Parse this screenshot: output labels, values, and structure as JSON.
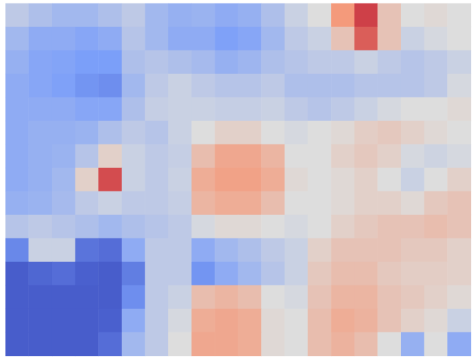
{
  "chart_data": {
    "type": "heatmap",
    "tick_labels": false,
    "color_range": [
      0,
      1
    ],
    "cells": [
      [
        0.42,
        0.38,
        0.35,
        0.35,
        0.38,
        0.42,
        0.35,
        0.32,
        0.33,
        0.3,
        0.32,
        0.38,
        0.45,
        0.5,
        0.75,
        0.9,
        0.6,
        0.5,
        0.52,
        0.5
      ],
      [
        0.35,
        0.3,
        0.3,
        0.28,
        0.3,
        0.4,
        0.35,
        0.3,
        0.3,
        0.26,
        0.28,
        0.35,
        0.42,
        0.45,
        0.6,
        0.85,
        0.6,
        0.45,
        0.48,
        0.5
      ],
      [
        0.32,
        0.28,
        0.27,
        0.25,
        0.25,
        0.38,
        0.4,
        0.38,
        0.36,
        0.32,
        0.34,
        0.38,
        0.4,
        0.42,
        0.42,
        0.45,
        0.42,
        0.4,
        0.42,
        0.45
      ],
      [
        0.3,
        0.28,
        0.26,
        0.22,
        0.2,
        0.35,
        0.42,
        0.45,
        0.42,
        0.4,
        0.4,
        0.42,
        0.38,
        0.38,
        0.38,
        0.4,
        0.4,
        0.4,
        0.42,
        0.48
      ],
      [
        0.3,
        0.3,
        0.3,
        0.28,
        0.28,
        0.38,
        0.44,
        0.45,
        0.45,
        0.44,
        0.44,
        0.45,
        0.42,
        0.4,
        0.42,
        0.45,
        0.48,
        0.5,
        0.5,
        0.52
      ],
      [
        0.3,
        0.32,
        0.32,
        0.33,
        0.38,
        0.42,
        0.4,
        0.45,
        0.5,
        0.55,
        0.55,
        0.5,
        0.48,
        0.5,
        0.52,
        0.56,
        0.58,
        0.55,
        0.52,
        0.5
      ],
      [
        0.3,
        0.32,
        0.33,
        0.4,
        0.55,
        0.45,
        0.42,
        0.44,
        0.62,
        0.7,
        0.7,
        0.65,
        0.5,
        0.5,
        0.55,
        0.58,
        0.55,
        0.48,
        0.46,
        0.48
      ],
      [
        0.3,
        0.32,
        0.35,
        0.55,
        0.88,
        0.45,
        0.42,
        0.45,
        0.68,
        0.72,
        0.72,
        0.68,
        0.52,
        0.5,
        0.52,
        0.55,
        0.5,
        0.45,
        0.5,
        0.55
      ],
      [
        0.32,
        0.33,
        0.36,
        0.42,
        0.45,
        0.42,
        0.42,
        0.44,
        0.65,
        0.68,
        0.68,
        0.62,
        0.5,
        0.5,
        0.52,
        0.55,
        0.55,
        0.52,
        0.58,
        0.6
      ],
      [
        0.4,
        0.42,
        0.4,
        0.38,
        0.35,
        0.38,
        0.4,
        0.42,
        0.48,
        0.52,
        0.52,
        0.5,
        0.48,
        0.5,
        0.55,
        0.58,
        0.6,
        0.6,
        0.62,
        0.6
      ],
      [
        0.18,
        0.45,
        0.45,
        0.12,
        0.1,
        0.3,
        0.42,
        0.42,
        0.3,
        0.35,
        0.38,
        0.42,
        0.45,
        0.55,
        0.6,
        0.6,
        0.6,
        0.58,
        0.58,
        0.55
      ],
      [
        0.05,
        0.08,
        0.1,
        0.06,
        0.05,
        0.15,
        0.42,
        0.42,
        0.22,
        0.3,
        0.35,
        0.4,
        0.45,
        0.58,
        0.62,
        0.62,
        0.58,
        0.56,
        0.56,
        0.55
      ],
      [
        0.05,
        0.05,
        0.05,
        0.05,
        0.05,
        0.2,
        0.42,
        0.45,
        0.62,
        0.65,
        0.62,
        0.5,
        0.48,
        0.6,
        0.65,
        0.65,
        0.6,
        0.58,
        0.55,
        0.52
      ],
      [
        0.05,
        0.05,
        0.05,
        0.05,
        0.06,
        0.3,
        0.42,
        0.48,
        0.68,
        0.7,
        0.68,
        0.52,
        0.5,
        0.62,
        0.68,
        0.66,
        0.6,
        0.55,
        0.52,
        0.45
      ],
      [
        0.05,
        0.05,
        0.05,
        0.05,
        0.1,
        0.35,
        0.42,
        0.5,
        0.7,
        0.7,
        0.68,
        0.52,
        0.5,
        0.62,
        0.66,
        0.62,
        0.5,
        0.32,
        0.5,
        0.3
      ]
    ]
  }
}
